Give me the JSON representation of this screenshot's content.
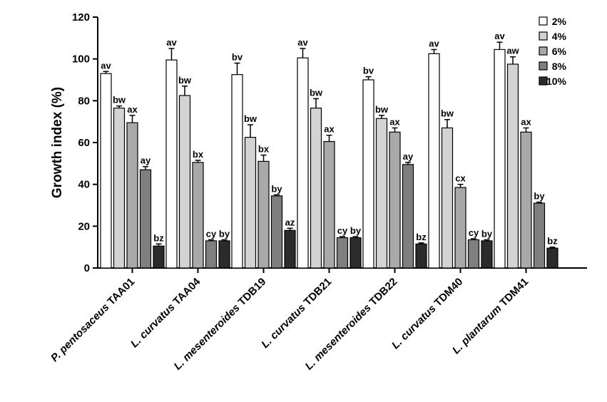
{
  "chart_data": {
    "type": "bar",
    "ylabel": "Growth index (%)",
    "xlabel": "",
    "title": "",
    "ylim": [
      0,
      120
    ],
    "yticks": [
      0,
      20,
      40,
      60,
      80,
      100,
      120
    ],
    "grid": false,
    "legend_position": "top-right",
    "categories": [
      {
        "italic": "P. pentosaceus",
        "roman": "TAA01"
      },
      {
        "italic": "L. curvatus",
        "roman": "TAA04"
      },
      {
        "italic": "L. mesenteroides",
        "roman": "TDB19"
      },
      {
        "italic": "L. curvatus",
        "roman": "TDB21"
      },
      {
        "italic": "L. mesenteroides",
        "roman": "TDB22"
      },
      {
        "italic": "L. curvatus",
        "roman": "TDM40"
      },
      {
        "italic": "L. plantarum",
        "roman": "TDM41"
      }
    ],
    "series": [
      {
        "name": "2%",
        "color": "#ffffff",
        "values": [
          93,
          99.5,
          92.5,
          100.5,
          90,
          102.5,
          104.5
        ],
        "errors": [
          1,
          5.5,
          5.5,
          4.5,
          1.5,
          2,
          3.5
        ],
        "labels": [
          "av",
          "av",
          "bv",
          "av",
          "bv",
          "av",
          "av"
        ]
      },
      {
        "name": "4%",
        "color": "#d3d3d3",
        "values": [
          76.5,
          82.5,
          62.5,
          76.5,
          71.5,
          67,
          97.5
        ],
        "errors": [
          1,
          4.5,
          6,
          4.5,
          1.5,
          4,
          3.5
        ],
        "labels": [
          "bw",
          "bw",
          "bw",
          "bw",
          "bw",
          "bw",
          "aw"
        ]
      },
      {
        "name": "6%",
        "color": "#a9a9a9",
        "values": [
          69.5,
          50.5,
          51,
          60.5,
          65,
          38.5,
          65
        ],
        "errors": [
          3.5,
          1,
          3,
          3,
          2,
          1.5,
          2
        ],
        "labels": [
          "ax",
          "bx",
          "bx",
          "ax",
          "ax",
          "cx",
          "ax"
        ]
      },
      {
        "name": "8%",
        "color": "#7f7f7f",
        "values": [
          47,
          13,
          34.5,
          14.5,
          49.5,
          13.5,
          31
        ],
        "errors": [
          1.5,
          0.5,
          0.5,
          0.5,
          1,
          0.5,
          0.5
        ],
        "labels": [
          "ay",
          "cy",
          "by",
          "cy",
          "ay",
          "cy",
          "by"
        ]
      },
      {
        "name": "10%",
        "color": "#2b2b2b",
        "values": [
          10.5,
          13,
          18,
          14.5,
          11.5,
          13,
          9.5
        ],
        "errors": [
          1,
          0.5,
          1,
          0.5,
          0.5,
          0.5,
          0.5
        ],
        "labels": [
          "bz",
          "by",
          "az",
          "by",
          "bz",
          "by",
          "bz"
        ]
      }
    ]
  }
}
